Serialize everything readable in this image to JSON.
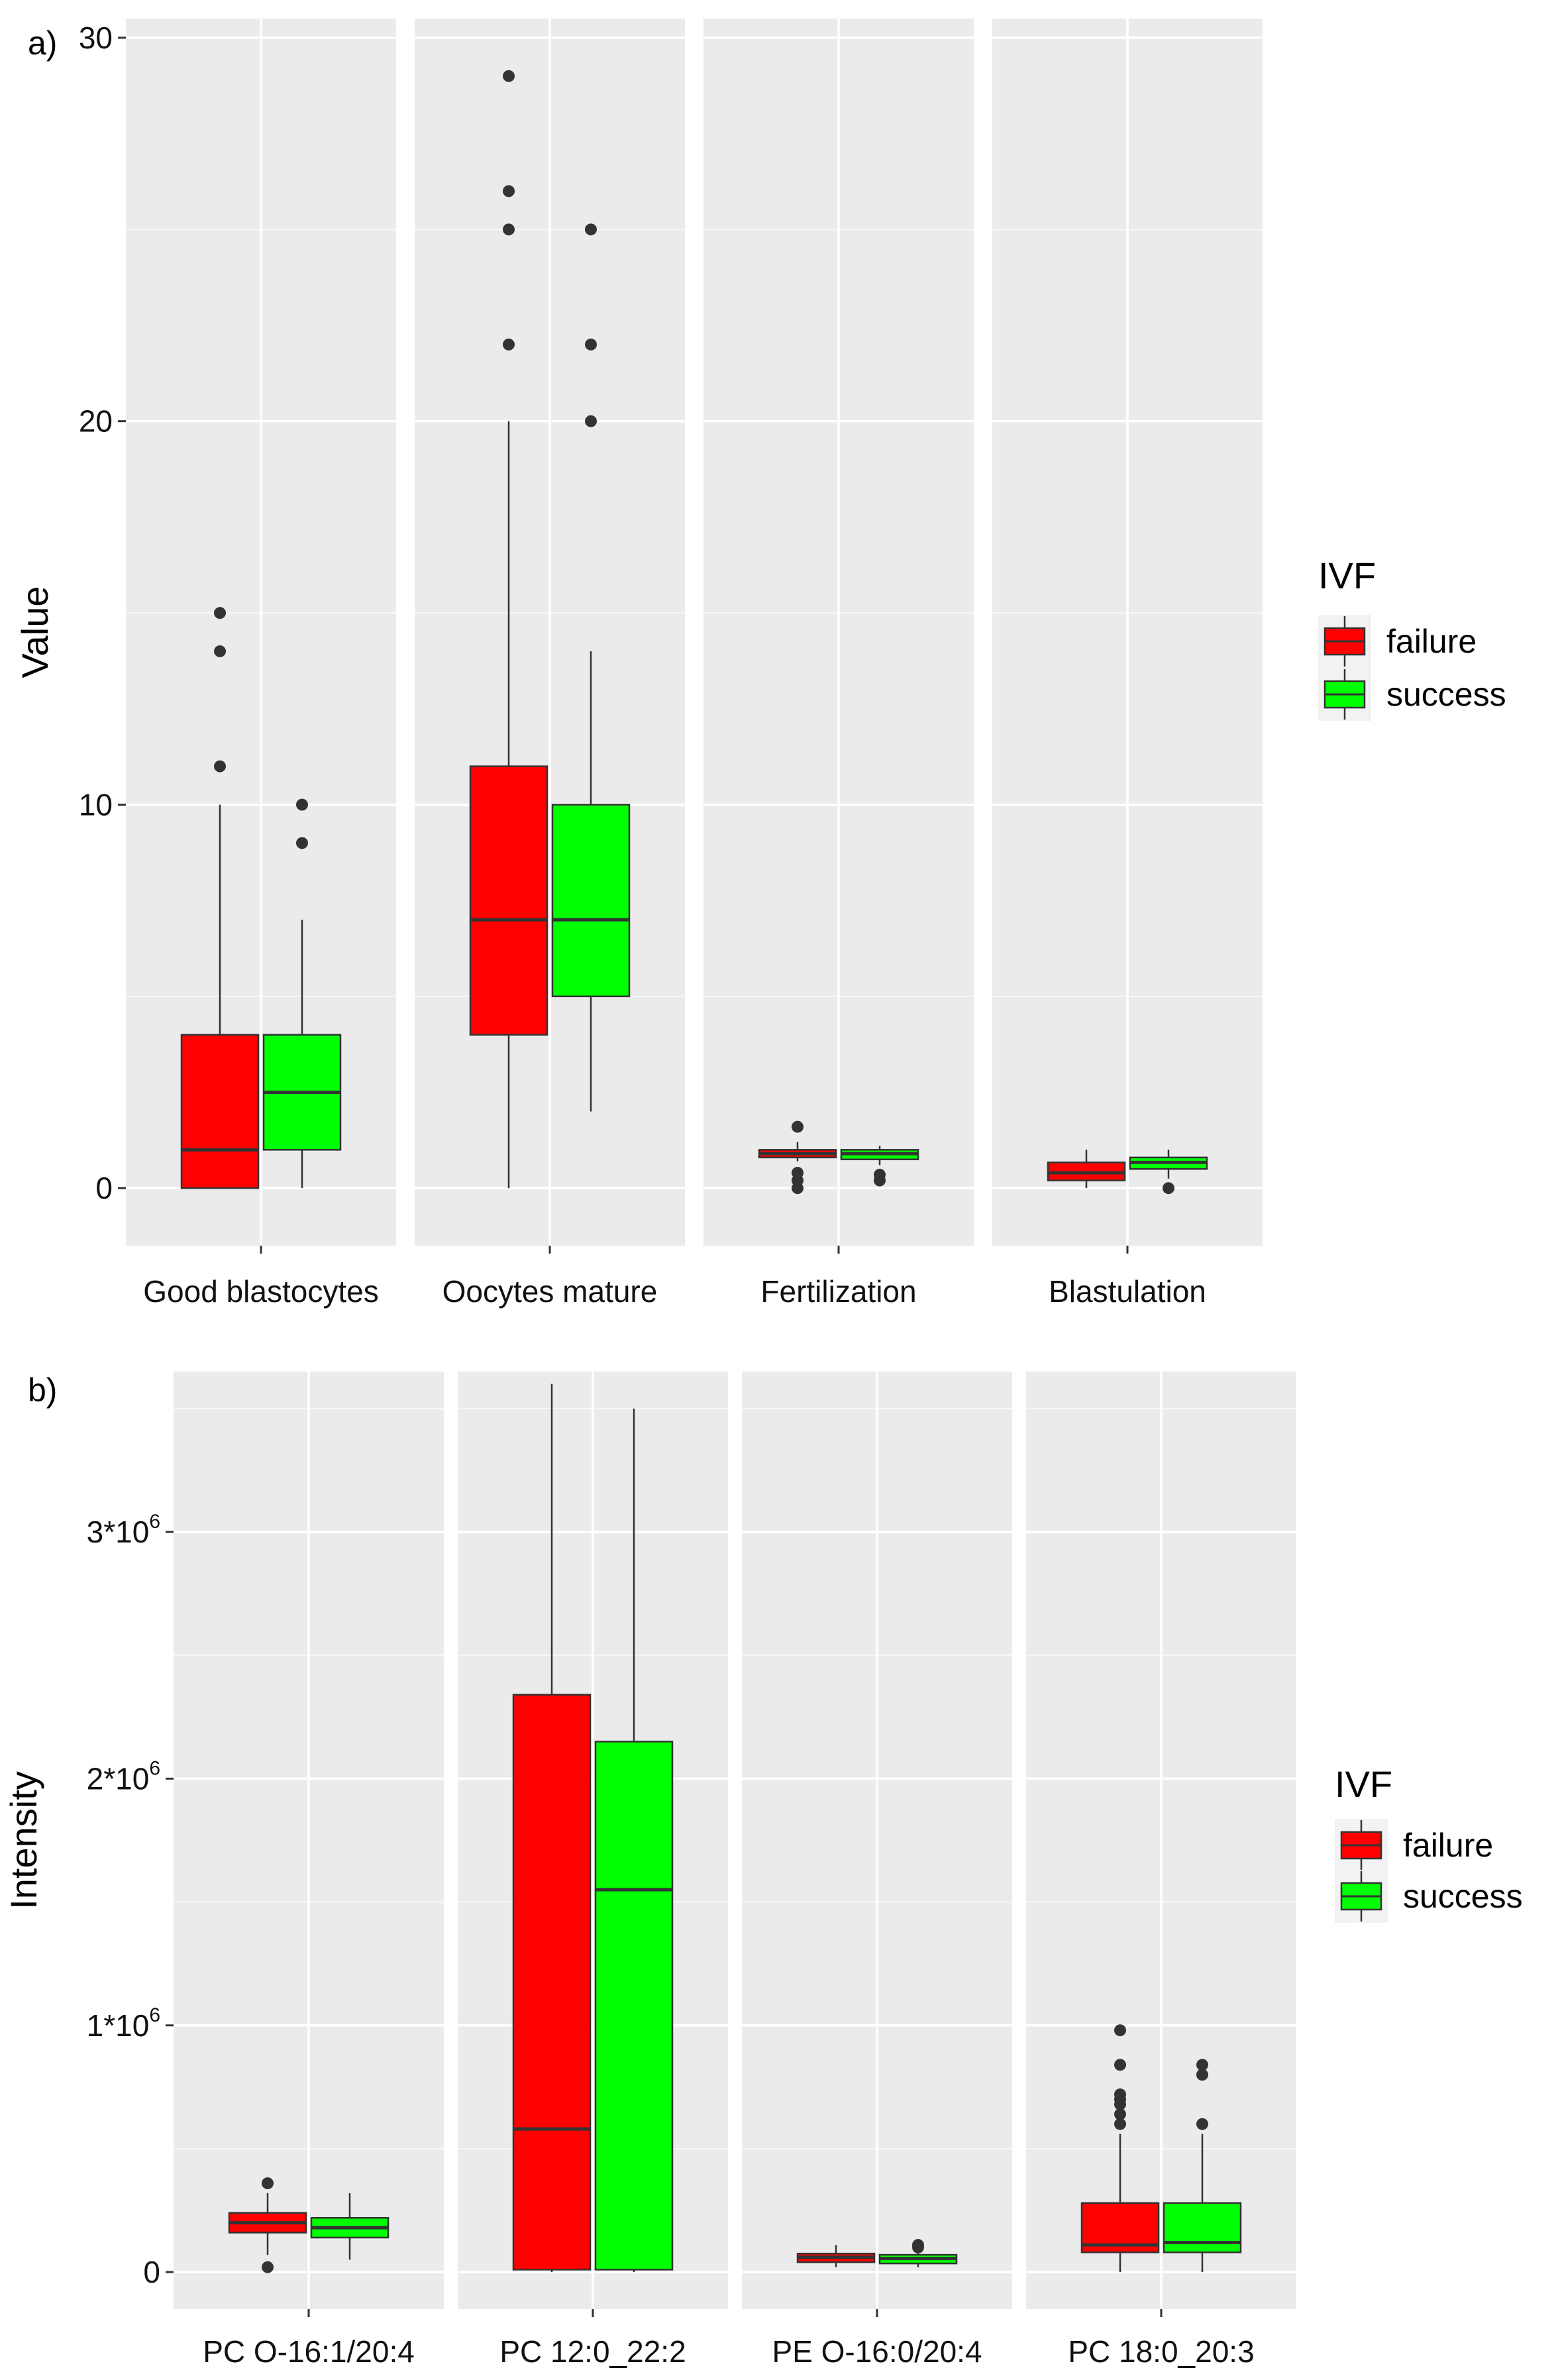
{
  "chart_data": [
    {
      "type": "boxplot",
      "panel_label": "a)",
      "ylabel": "Value",
      "ylim": [
        -1.5,
        30.5
      ],
      "y_ticks": [
        "0",
        "10",
        "20",
        "30"
      ],
      "y_tick_values": [
        0,
        10,
        20,
        30
      ],
      "grid": true,
      "legend": {
        "title": "IVF",
        "position": "right",
        "entries": [
          {
            "name": "failure",
            "color": "#ff0000"
          },
          {
            "name": "success",
            "color": "#00ff00"
          }
        ]
      },
      "facets": [
        {
          "label": "Good blastocytes",
          "boxes": [
            {
              "group": "failure",
              "min": 0,
              "q1": 0,
              "median": 1,
              "q3": 4,
              "max": 10,
              "outliers": [
                11,
                14,
                15
              ]
            },
            {
              "group": "success",
              "min": 0,
              "q1": 1,
              "median": 2.5,
              "q3": 4,
              "max": 7,
              "outliers": [
                9,
                10
              ]
            }
          ]
        },
        {
          "label": "Oocytes mature",
          "boxes": [
            {
              "group": "failure",
              "min": 0,
              "q1": 4,
              "median": 7,
              "q3": 11,
              "max": 20,
              "outliers": [
                22,
                25,
                26,
                29
              ]
            },
            {
              "group": "success",
              "min": 2,
              "q1": 5,
              "median": 7,
              "q3": 10,
              "max": 14,
              "outliers": [
                20,
                22,
                25
              ]
            }
          ]
        },
        {
          "label": "Fertilization",
          "boxes": [
            {
              "group": "failure",
              "min": 0.7,
              "q1": 0.8,
              "median": 0.9,
              "q3": 1.0,
              "max": 1.2,
              "outliers": [
                0,
                0.2,
                0.4,
                1.6
              ]
            },
            {
              "group": "success",
              "min": 0.6,
              "q1": 0.75,
              "median": 0.9,
              "q3": 1.0,
              "max": 1.1,
              "outliers": [
                0.2,
                0.35
              ]
            }
          ]
        },
        {
          "label": "Blastulation",
          "boxes": [
            {
              "group": "failure",
              "min": 0,
              "q1": 0.2,
              "median": 0.4,
              "q3": 0.67,
              "max": 1.0,
              "outliers": []
            },
            {
              "group": "success",
              "min": 0.25,
              "q1": 0.5,
              "median": 0.67,
              "q3": 0.8,
              "max": 1.0,
              "outliers": [
                0
              ]
            }
          ]
        }
      ]
    },
    {
      "type": "boxplot",
      "panel_label": "b)",
      "ylabel": "Intensity",
      "ylim": [
        -150000,
        3650000
      ],
      "y_ticks": [
        "0",
        "1*10^6",
        "2*10^6",
        "3*10^6"
      ],
      "y_tick_values": [
        0,
        1000000,
        2000000,
        3000000
      ],
      "grid": true,
      "legend": {
        "title": "IVF",
        "position": "right",
        "entries": [
          {
            "name": "failure",
            "color": "#ff0000"
          },
          {
            "name": "success",
            "color": "#00ff00"
          }
        ]
      },
      "facets": [
        {
          "label": "PC O-16:1/20:4",
          "boxes": [
            {
              "group": "failure",
              "min": 70000,
              "q1": 160000,
              "median": 200000,
              "q3": 240000,
              "max": 320000,
              "outliers": [
                20000,
                360000
              ]
            },
            {
              "group": "success",
              "min": 50000,
              "q1": 140000,
              "median": 180000,
              "q3": 220000,
              "max": 320000,
              "outliers": []
            }
          ]
        },
        {
          "label": "PC 12:0_22:2",
          "boxes": [
            {
              "group": "failure",
              "min": 0,
              "q1": 10000,
              "median": 580000,
              "q3": 2340000,
              "max": 3600000,
              "outliers": []
            },
            {
              "group": "success",
              "min": 0,
              "q1": 10000,
              "median": 1550000,
              "q3": 2150000,
              "max": 3500000,
              "outliers": []
            }
          ]
        },
        {
          "label": "PE O-16:0/20:4",
          "boxes": [
            {
              "group": "failure",
              "min": 20000,
              "q1": 40000,
              "median": 60000,
              "q3": 75000,
              "max": 110000,
              "outliers": []
            },
            {
              "group": "success",
              "min": 20000,
              "q1": 35000,
              "median": 55000,
              "q3": 70000,
              "max": 90000,
              "outliers": [
                100000,
                110000
              ]
            }
          ]
        },
        {
          "label": "PC 18:0_20:3",
          "boxes": [
            {
              "group": "failure",
              "min": 0,
              "q1": 80000,
              "median": 110000,
              "q3": 280000,
              "max": 560000,
              "outliers": [
                600000,
                640000,
                680000,
                700000,
                720000,
                840000,
                980000
              ]
            },
            {
              "group": "success",
              "min": 0,
              "q1": 80000,
              "median": 120000,
              "q3": 280000,
              "max": 560000,
              "outliers": [
                600000,
                800000,
                840000
              ]
            }
          ]
        }
      ]
    }
  ]
}
